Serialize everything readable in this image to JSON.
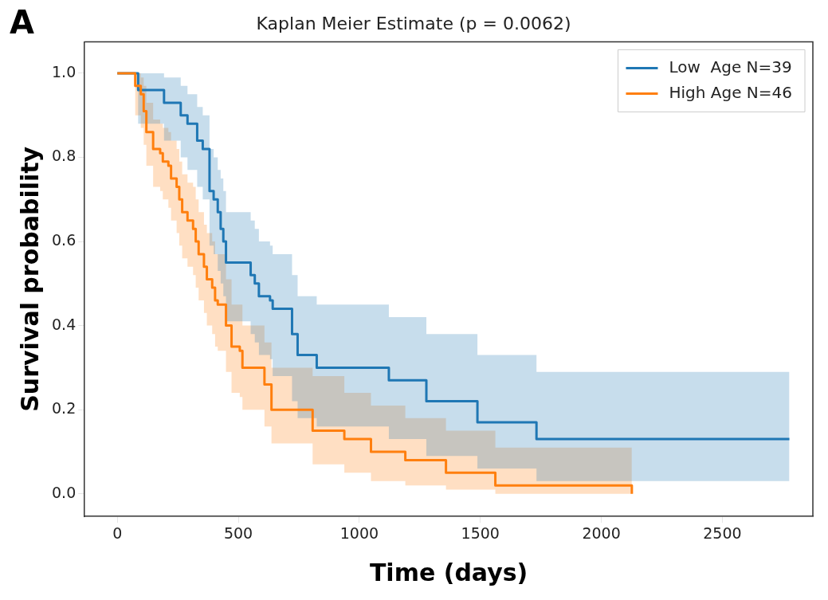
{
  "chart_data": {
    "type": "step",
    "title": "Kaplan Meier Estimate (p = 0.0062)",
    "xlabel": "Time (days)",
    "ylabel": "Survival probability",
    "annotations": [
      "A"
    ],
    "xlim": [
      -135,
      2874
    ],
    "xticks": [
      0,
      500,
      1000,
      1500,
      2000,
      2500
    ],
    "ylim": [
      -0.054,
      1.075
    ],
    "yticks": [
      {
        "value": 0,
        "label": "0.0"
      },
      {
        "value": 0.2,
        "label": "0.2"
      },
      {
        "value": 0.4,
        "label": "0.4"
      },
      {
        "value": 0.6,
        "label": "0.6"
      },
      {
        "value": 0.8,
        "label": "0.8"
      },
      {
        "value": 1,
        "label": "1.0"
      }
    ],
    "grid": false,
    "legend": "top right",
    "series": [
      {
        "name": "Low  Age N=39",
        "color": "#1f77b4",
        "x": [
          0,
          86,
          193,
          262,
          290,
          330,
          353,
          381,
          398,
          415,
          427,
          438,
          449,
          551,
          568,
          585,
          631,
          642,
          722,
          745,
          824,
          1122,
          1277,
          1488,
          1732,
          2777
        ],
        "values": [
          1.0,
          0.96,
          0.93,
          0.9,
          0.88,
          0.84,
          0.82,
          0.72,
          0.7,
          0.67,
          0.63,
          0.6,
          0.55,
          0.52,
          0.5,
          0.47,
          0.46,
          0.44,
          0.38,
          0.33,
          0.3,
          0.27,
          0.22,
          0.17,
          0.13,
          0.13
        ],
        "lower": [
          1.0,
          0.88,
          0.84,
          0.8,
          0.77,
          0.73,
          0.7,
          0.59,
          0.57,
          0.53,
          0.5,
          0.47,
          0.41,
          0.38,
          0.36,
          0.33,
          0.32,
          0.28,
          0.22,
          0.18,
          0.16,
          0.13,
          0.09,
          0.06,
          0.03,
          0.03
        ],
        "upper": [
          1.0,
          1.0,
          0.99,
          0.97,
          0.95,
          0.92,
          0.9,
          0.82,
          0.8,
          0.77,
          0.75,
          0.72,
          0.67,
          0.65,
          0.63,
          0.6,
          0.59,
          0.57,
          0.52,
          0.47,
          0.45,
          0.42,
          0.38,
          0.33,
          0.29,
          0.29
        ]
      },
      {
        "name": "High Age N=46",
        "color": "#ff7f0e",
        "x": [
          0,
          74,
          97,
          109,
          120,
          148,
          177,
          188,
          211,
          222,
          245,
          256,
          268,
          290,
          313,
          324,
          336,
          358,
          370,
          392,
          404,
          415,
          449,
          472,
          506,
          517,
          608,
          637,
          807,
          938,
          1048,
          1190,
          1358,
          1562,
          2126
        ],
        "values": [
          1.0,
          0.97,
          0.95,
          0.91,
          0.86,
          0.82,
          0.81,
          0.79,
          0.78,
          0.75,
          0.73,
          0.7,
          0.67,
          0.65,
          0.63,
          0.6,
          0.57,
          0.54,
          0.51,
          0.49,
          0.46,
          0.45,
          0.4,
          0.35,
          0.34,
          0.3,
          0.26,
          0.2,
          0.15,
          0.13,
          0.1,
          0.08,
          0.05,
          0.02,
          0.0
        ],
        "lower": [
          1.0,
          0.9,
          0.87,
          0.83,
          0.78,
          0.73,
          0.72,
          0.7,
          0.68,
          0.65,
          0.62,
          0.59,
          0.56,
          0.54,
          0.52,
          0.49,
          0.46,
          0.43,
          0.4,
          0.38,
          0.35,
          0.34,
          0.29,
          0.24,
          0.23,
          0.2,
          0.16,
          0.12,
          0.07,
          0.05,
          0.03,
          0.02,
          0.01,
          0.0,
          0.0
        ],
        "upper": [
          1.0,
          1.0,
          0.99,
          0.97,
          0.93,
          0.89,
          0.88,
          0.87,
          0.86,
          0.84,
          0.82,
          0.79,
          0.76,
          0.74,
          0.73,
          0.7,
          0.67,
          0.64,
          0.62,
          0.6,
          0.57,
          0.57,
          0.51,
          0.45,
          0.45,
          0.4,
          0.36,
          0.3,
          0.28,
          0.24,
          0.21,
          0.18,
          0.15,
          0.11,
          0.11
        ]
      }
    ]
  }
}
